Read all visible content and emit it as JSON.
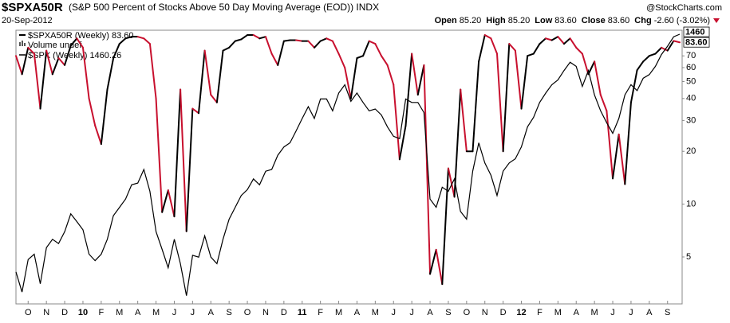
{
  "chart_data": {
    "type": "line",
    "title": "$SPXA50R",
    "subtitle": "(S&P 500 Percent of Stocks Above 50 Day Moving Average (EOD)) INDX",
    "watermark": "@StockCharts.com",
    "date": "20-Sep-2012",
    "quote": [
      {
        "label": "Open",
        "value": "85.20"
      },
      {
        "label": "High",
        "value": "85.20"
      },
      {
        "label": "Low",
        "value": "83.60"
      },
      {
        "label": "Close",
        "value": "83.60"
      },
      {
        "label": "Chg",
        "value": "-2.60 (-3.02%)"
      }
    ],
    "volume_legend": "Volume undef",
    "log_scale": true,
    "grid": false,
    "ylim": [
      2.7,
      98
    ],
    "yticks": [
      5,
      10,
      20,
      30,
      40,
      50,
      60,
      70
    ],
    "y2lim": [
      1005,
      1467
    ],
    "categories": [
      null,
      null,
      "O",
      null,
      null,
      "N",
      null,
      null,
      "D",
      null,
      null,
      "10",
      null,
      null,
      "F",
      null,
      null,
      "M",
      null,
      null,
      "A",
      null,
      null,
      "M",
      null,
      null,
      "J",
      null,
      null,
      "J",
      null,
      null,
      "A",
      null,
      null,
      "S",
      null,
      null,
      "O",
      null,
      null,
      "N",
      null,
      null,
      "D",
      null,
      null,
      "11",
      null,
      null,
      "F",
      null,
      null,
      "M",
      null,
      null,
      "A",
      null,
      null,
      "M",
      null,
      null,
      "J",
      null,
      null,
      "J",
      null,
      null,
      "A",
      null,
      null,
      "S",
      null,
      null,
      "O",
      null,
      null,
      "N",
      null,
      null,
      "D",
      null,
      null,
      "12",
      null,
      null,
      "F",
      null,
      null,
      "M",
      null,
      null,
      "A",
      null,
      null,
      "M",
      null,
      null,
      "J",
      null,
      null,
      "J",
      null,
      null,
      "A",
      null,
      null,
      "S",
      null,
      null
    ],
    "series": [
      {
        "name": "$SPXA50R (Weekly)",
        "last_label": "83.60",
        "color": "#000000",
        "down_color": "#c8102e",
        "values": [
          70,
          55,
          78,
          72,
          35,
          75,
          55,
          68,
          62,
          80,
          88,
          78,
          40,
          28,
          22,
          45,
          68,
          82,
          88,
          90,
          90,
          88,
          82,
          40,
          9,
          12,
          8.5,
          45,
          7,
          35,
          33,
          75,
          42,
          38,
          75,
          78,
          85,
          87,
          92,
          92,
          88,
          90,
          72,
          62,
          85,
          86,
          86,
          85,
          85,
          78,
          85,
          88,
          85,
          72,
          60,
          40,
          68,
          70,
          85,
          82,
          70,
          62,
          48,
          18,
          28,
          72,
          42,
          62,
          4,
          5.5,
          3.5,
          16,
          11,
          45,
          20,
          20,
          65,
          92,
          88,
          72,
          20,
          82,
          75,
          35,
          70,
          72,
          82,
          88,
          86,
          90,
          82,
          88,
          78,
          72,
          55,
          65,
          42,
          34,
          14,
          25,
          13,
          38,
          58,
          65,
          70,
          72,
          78,
          75,
          85.2,
          83.6
        ]
      },
      {
        "name": "$SPX (Weekly)",
        "last_label": "1460",
        "color": "#000000",
        "axis": "y2",
        "values": [
          1059,
          1025,
          1080,
          1089,
          1039,
          1100,
          1114,
          1107,
          1127,
          1157,
          1144,
          1130,
          1089,
          1078,
          1089,
          1114,
          1154,
          1168,
          1182,
          1206,
          1209,
          1232,
          1195,
          1127,
          1097,
          1066,
          1114,
          1073,
          1019,
          1087,
          1084,
          1120,
          1084,
          1073,
          1114,
          1148,
          1168,
          1188,
          1198,
          1216,
          1206,
          1229,
          1232,
          1256,
          1270,
          1277,
          1297,
          1318,
          1338,
          1318,
          1351,
          1351,
          1331,
          1361,
          1375,
          1347,
          1361,
          1345,
          1331,
          1334,
          1324,
          1304,
          1288,
          1284,
          1351,
          1345,
          1345,
          1328,
          1182,
          1168,
          1202,
          1195,
          1216,
          1161,
          1148,
          1229,
          1277,
          1243,
          1222,
          1188,
          1229,
          1243,
          1250,
          1270,
          1304,
          1320,
          1345,
          1361,
          1375,
          1383,
          1399,
          1413,
          1406,
          1372,
          1399,
          1358,
          1331,
          1311,
          1293,
          1318,
          1358,
          1375,
          1365,
          1386,
          1392,
          1406,
          1426,
          1440,
          1456,
          1460.26
        ]
      }
    ]
  }
}
